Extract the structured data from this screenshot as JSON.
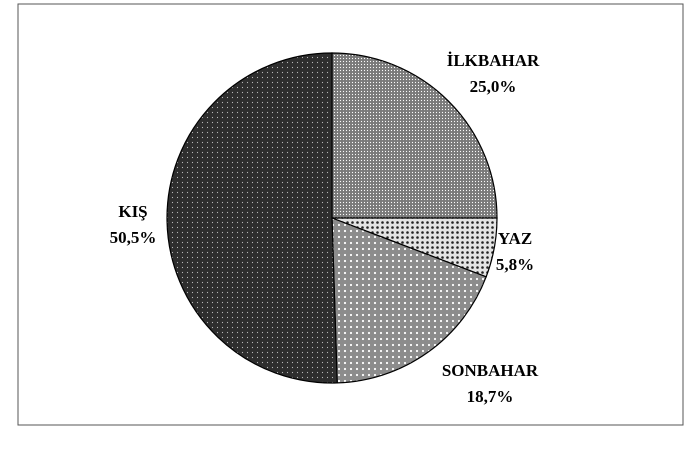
{
  "chart_data": {
    "type": "pie",
    "categories": [
      "İLKBAHAR",
      "YAZ",
      "SONBAHAR",
      "KIŞ"
    ],
    "values": [
      25.0,
      5.8,
      18.7,
      50.5
    ],
    "value_labels": [
      "25,0%",
      "5,8%",
      "18,7%",
      "50,5%"
    ],
    "colors": [
      "#7a7a7a",
      "#e4e4e4",
      "#8c8c8c",
      "#2e2e2e"
    ]
  }
}
